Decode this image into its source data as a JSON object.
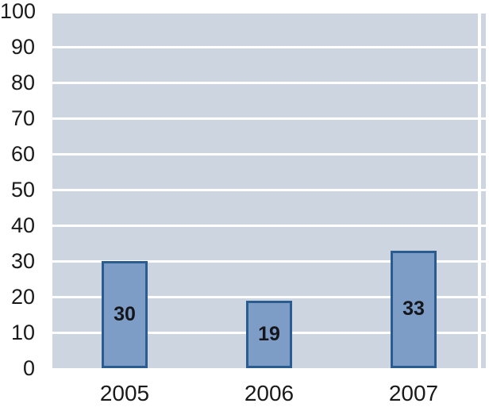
{
  "chart_data": {
    "type": "bar",
    "title": "",
    "xlabel": "",
    "ylabel": "",
    "categories": [
      "2005",
      "2006",
      "2007"
    ],
    "values": [
      30,
      19,
      33
    ],
    "bar_labels": [
      "30",
      "19",
      "33"
    ],
    "ylim": [
      0,
      100
    ],
    "ytick_step": 10,
    "ytick_labels": [
      "0",
      "10",
      "20",
      "30",
      "40",
      "50",
      "60",
      "70",
      "80",
      "90",
      "100"
    ],
    "grid": true,
    "legend": false,
    "colors": {
      "page_background": "#FFFFFF",
      "plot_background": "#CDD5E0",
      "gridline": "#FFFFFF",
      "bar_fill": "#7E9DC6",
      "bar_border": "#2A5C8F",
      "axis_text": "#1A1A1A",
      "bar_label_text": "#14161C"
    }
  }
}
